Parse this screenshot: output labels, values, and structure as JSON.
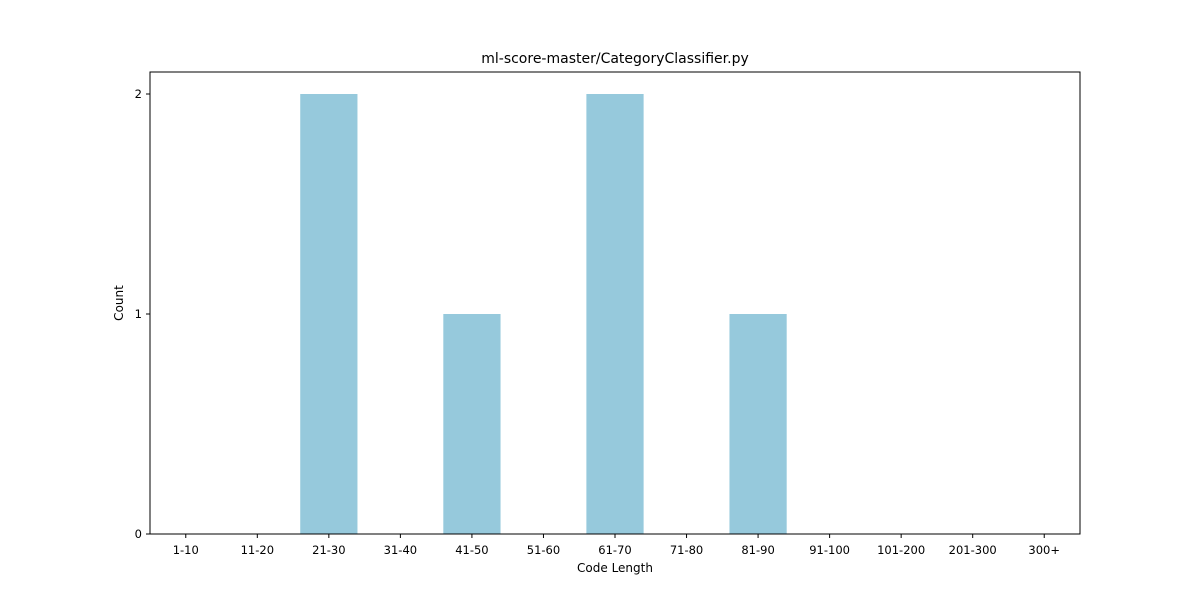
{
  "chart_data": {
    "type": "bar",
    "title": "ml-score-master/CategoryClassifier.py",
    "xlabel": "Code Length",
    "ylabel": "Count",
    "categories": [
      "1-10",
      "11-20",
      "21-30",
      "31-40",
      "41-50",
      "51-60",
      "61-70",
      "71-80",
      "81-90",
      "91-100",
      "101-200",
      "201-300",
      "300+"
    ],
    "values": [
      0,
      0,
      2,
      0,
      1,
      0,
      2,
      0,
      1,
      0,
      0,
      0,
      0
    ],
    "yticks": [
      "0",
      "1",
      "2"
    ],
    "ylim": [
      0,
      2.1
    ],
    "grid": false,
    "legend": "none",
    "bar_color": "#96c9dc"
  }
}
